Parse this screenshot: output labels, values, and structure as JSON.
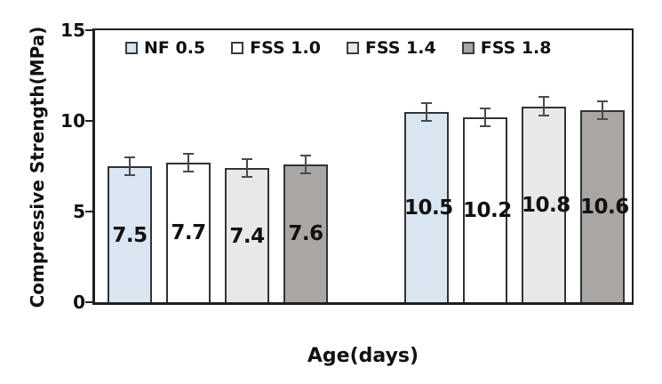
{
  "chart_data": {
    "type": "bar",
    "title": "",
    "xlabel": "Age(days)",
    "ylabel": "Compressive Strength(MPa)",
    "ylim": [
      0,
      15
    ],
    "yticks": [
      0,
      5,
      10,
      15
    ],
    "grid": false,
    "legend_position": "top-inside",
    "x_tick_labels_visible": false,
    "n_groups": 2,
    "series": [
      {
        "name": "NF 0.5",
        "color": "#d9e5f1",
        "values": [
          7.5,
          10.5
        ],
        "errors": [
          0.55,
          0.55
        ]
      },
      {
        "name": "FSS 1.0",
        "color": "#ffffff",
        "values": [
          7.7,
          10.2
        ],
        "errors": [
          0.55,
          0.55
        ]
      },
      {
        "name": "FSS 1.4",
        "color": "#e7e9e8",
        "values": [
          7.4,
          10.8
        ],
        "errors": [
          0.55,
          0.55
        ]
      },
      {
        "name": "FSS 1.8",
        "color": "#a9a6a3",
        "values": [
          7.6,
          10.6
        ],
        "errors": [
          0.55,
          0.55
        ]
      }
    ],
    "bar_value_labels": [
      [
        "7.5",
        "7.7",
        "7.4",
        "7.6"
      ],
      [
        "10.5",
        "10.2",
        "10.8",
        "10.6"
      ]
    ],
    "colors": {
      "bar_border": "#333333",
      "plot_border": "#1f1f1f",
      "error_bar": "#4a4a4a",
      "text": "#111111",
      "background": "#ffffff"
    }
  }
}
